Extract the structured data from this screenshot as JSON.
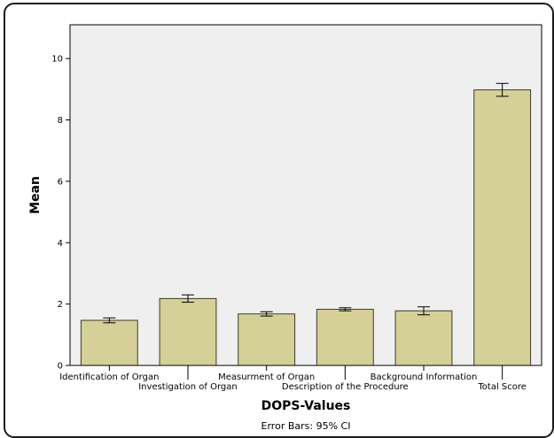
{
  "chart_data": {
    "type": "bar",
    "categories": [
      "Identification of Organ",
      "Investigation of Organ",
      "Measurment of Organ",
      "Description of the Procedure",
      "Background Information",
      "Total Score"
    ],
    "values": [
      1.47,
      2.18,
      1.68,
      1.83,
      1.78,
      8.98
    ],
    "error_low": [
      1.39,
      2.06,
      1.61,
      1.78,
      1.65,
      8.77
    ],
    "error_high": [
      1.55,
      2.3,
      1.75,
      1.88,
      1.91,
      9.19
    ],
    "xlabel": "DOPS-Values",
    "ylabel": "Mean",
    "ylim": [
      0,
      11.1
    ],
    "yticks": [
      0,
      2,
      4,
      6,
      8,
      10
    ],
    "footnote": "Error Bars: 95% CI",
    "grid": false,
    "colors": {
      "bar_fill": "#d5cf98",
      "bar_stroke": "#3d3d2a",
      "plot_background": "#efefef",
      "axis": "#000000"
    }
  }
}
